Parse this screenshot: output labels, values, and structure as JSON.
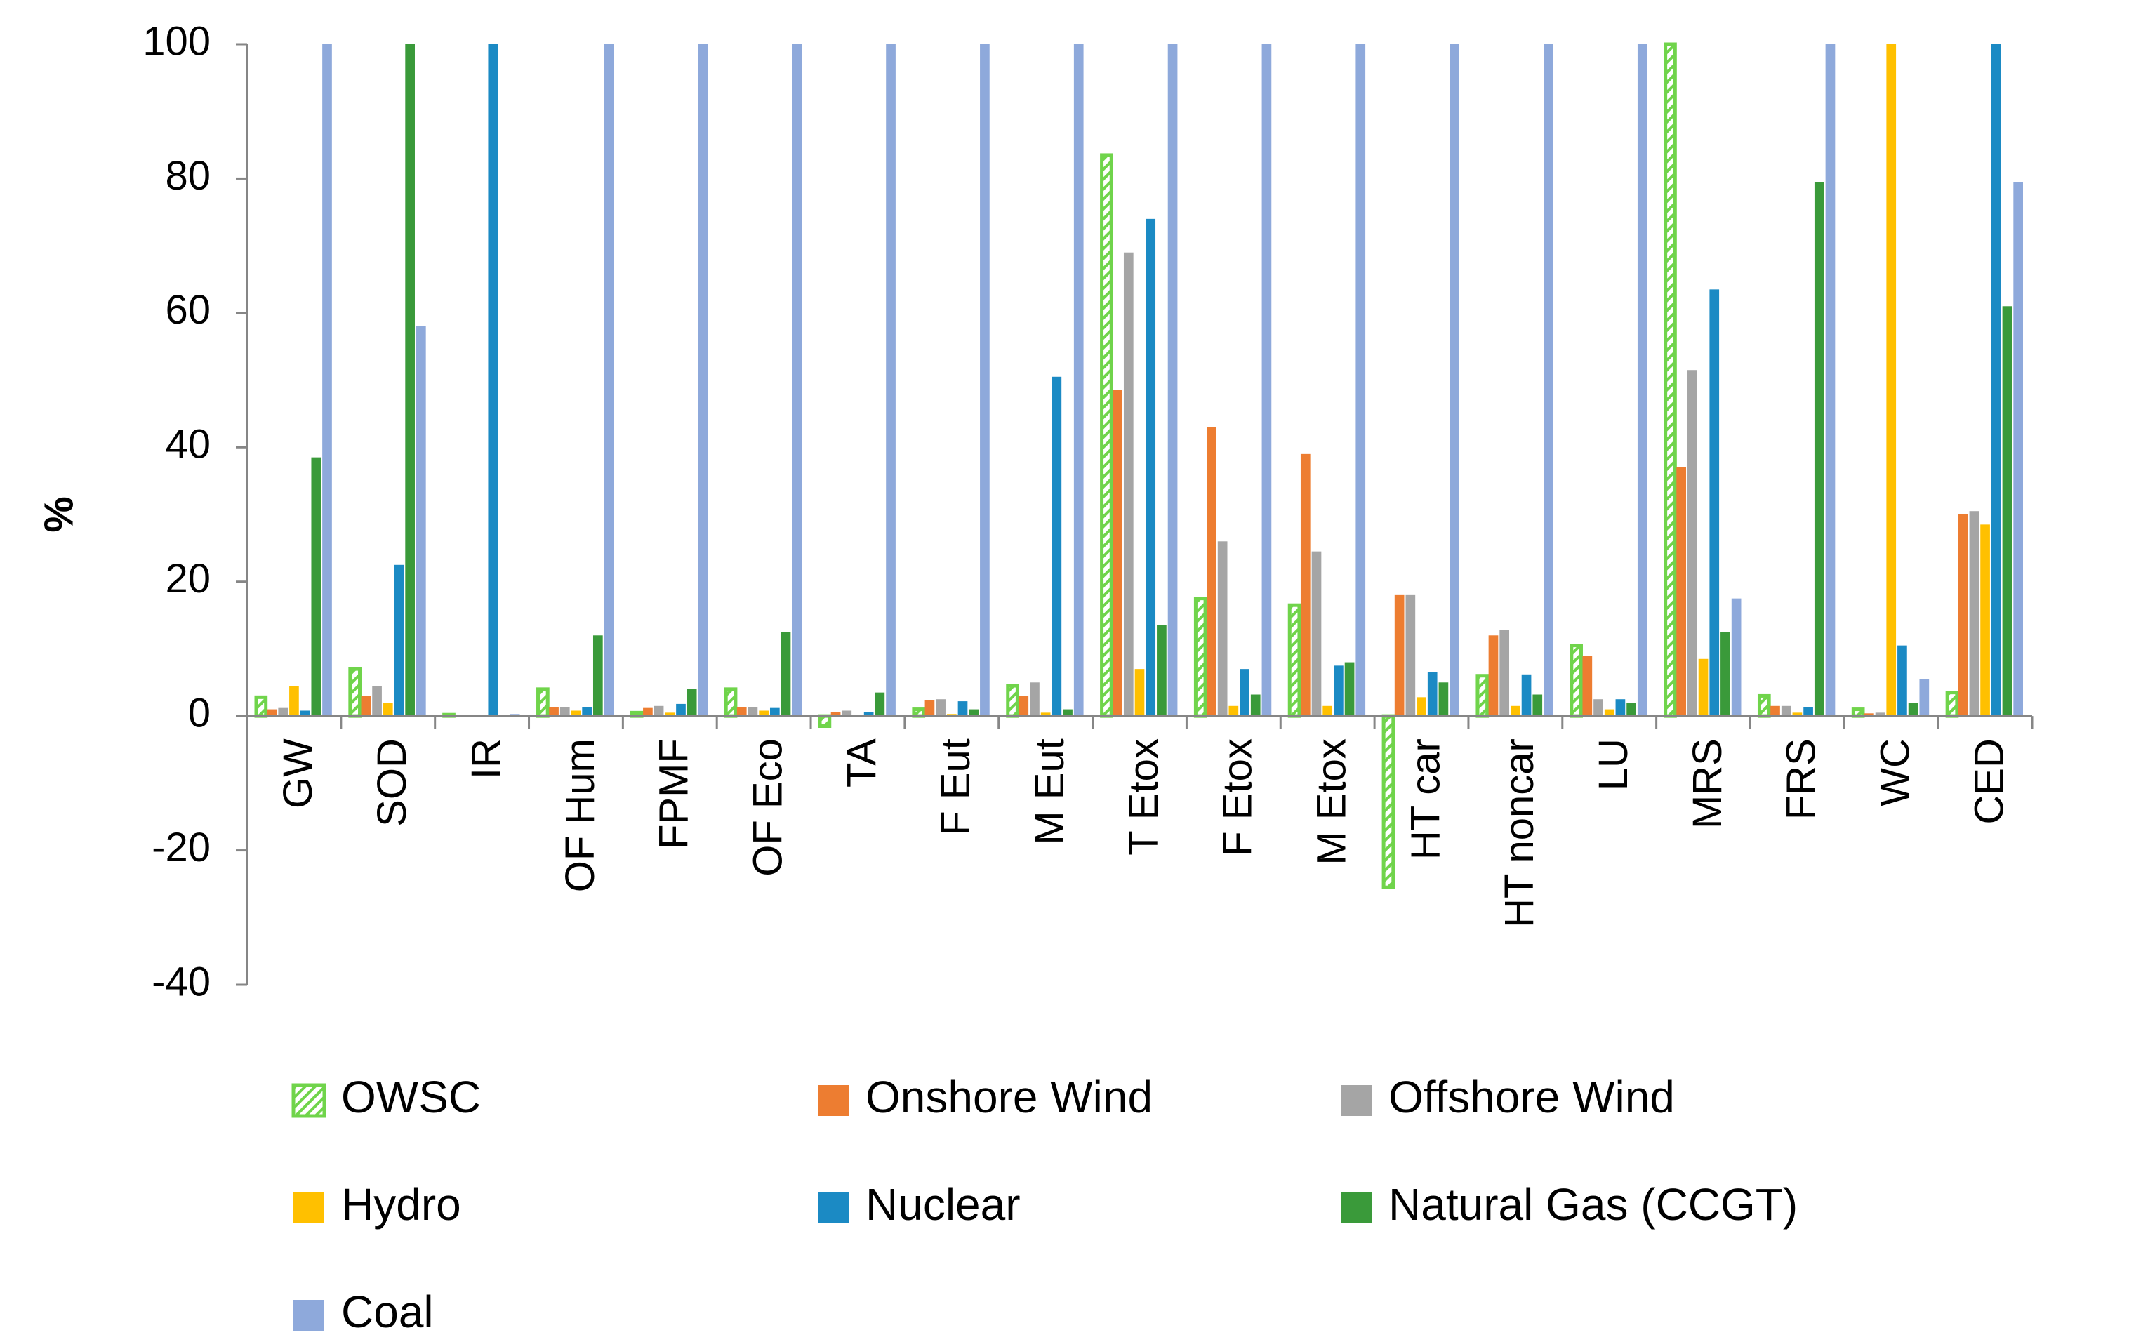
{
  "chart_data": {
    "type": "bar",
    "title": "",
    "xlabel": "",
    "ylabel": "%",
    "ylim": [
      -40,
      100
    ],
    "yticks": [
      "100",
      "80",
      "60",
      "40",
      "20",
      "0",
      "-20",
      "-40"
    ],
    "categories": [
      "GW",
      "SOD",
      "IR",
      "OF Hum",
      "FPMF",
      "OF Eco",
      "TA",
      "F Eut",
      "M Eut",
      "T Etox",
      "F Etox",
      "M Etox",
      "HT car",
      "HT noncar",
      "LU",
      "MRS",
      "FRS",
      "WC",
      "CED"
    ],
    "series": [
      {
        "name": "OWSC",
        "color": "#70D44B",
        "pattern": "hatched",
        "values": [
          2.8,
          7,
          0.2,
          4,
          0.5,
          4,
          -1.5,
          1,
          4.5,
          83.5,
          17.5,
          16.5,
          -25.5,
          6,
          10.5,
          100,
          3,
          1,
          3.5
        ]
      },
      {
        "name": "Onshore Wind",
        "color": "#ED7D31",
        "values": [
          1,
          3,
          0,
          1.3,
          1.2,
          1.3,
          0.6,
          2.4,
          3,
          48.5,
          43,
          39,
          18,
          12,
          9,
          37,
          1.5,
          0.4,
          30
        ]
      },
      {
        "name": "Offshore Wind",
        "color": "#A5A5A5",
        "values": [
          1.2,
          4.5,
          0,
          1.3,
          1.5,
          1.3,
          0.8,
          2.5,
          5,
          69,
          26,
          24.5,
          18,
          12.8,
          2.5,
          51.5,
          1.5,
          0.5,
          30.5
        ]
      },
      {
        "name": "Hydro",
        "color": "#FFC000",
        "values": [
          4.5,
          2,
          0,
          0.8,
          0.5,
          0.8,
          0.2,
          0.3,
          0.5,
          7,
          1.5,
          1.5,
          2.8,
          1.5,
          1,
          8.5,
          0.5,
          100,
          28.5
        ]
      },
      {
        "name": "Nuclear",
        "color": "#1B8AC4",
        "values": [
          0.8,
          22.5,
          100,
          1.3,
          1.8,
          1.2,
          0.6,
          2.2,
          50.5,
          74,
          7,
          7.5,
          6.5,
          6.2,
          2.5,
          63.5,
          1.3,
          10.5,
          100
        ]
      },
      {
        "name": "Natural Gas (CCGT)",
        "color": "#3A9A3A",
        "values": [
          38.5,
          100,
          0,
          12,
          4,
          12.5,
          3.5,
          1,
          1,
          13.5,
          3.2,
          8,
          5,
          3.2,
          2,
          12.5,
          79.5,
          2,
          61
        ]
      },
      {
        "name": "Coal",
        "color": "#8EA9DB",
        "values": [
          100,
          58,
          0.3,
          100,
          100,
          100,
          100,
          100,
          100,
          100,
          100,
          100,
          100,
          100,
          100,
          17.5,
          100,
          5.5,
          79.5
        ]
      }
    ],
    "legend": {
      "position": "bottom",
      "columns": 3
    },
    "grid": false
  }
}
